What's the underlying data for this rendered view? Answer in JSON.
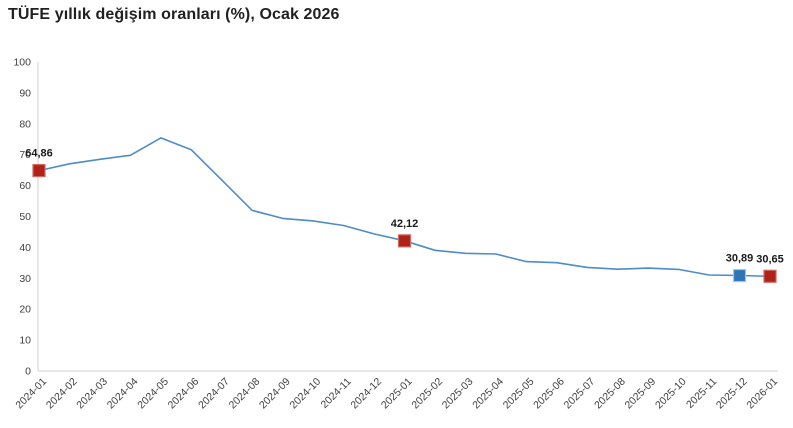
{
  "title": "TÜFE yıllık değişim oranları (%), Ocak 2026",
  "colors": {
    "line": "#4e8cc8",
    "marker_red": "#b02118",
    "marker_red_edge": "#cf6a60",
    "marker_blue": "#2e75b6",
    "marker_blue_edge": "#9ec6e8",
    "axis_line": "#d0d0d0",
    "tick_text": "#404040",
    "value_label_text": "#1a1a1a"
  },
  "chart_data": {
    "type": "line",
    "title": "TÜFE yıllık değişim oranları (%), Ocak 2026",
    "x": [
      "2024-01",
      "2024-02",
      "2024-03",
      "2024-04",
      "2024-05",
      "2024-06",
      "2024-07",
      "2024-08",
      "2024-09",
      "2024-10",
      "2024-11",
      "2024-12",
      "2025-01",
      "2025-02",
      "2025-03",
      "2025-04",
      "2025-05",
      "2025-06",
      "2025-07",
      "2025-08",
      "2025-09",
      "2025-10",
      "2025-11",
      "2025-12",
      "2026-01"
    ],
    "values": [
      64.86,
      67.07,
      68.5,
      69.8,
      75.45,
      71.6,
      61.78,
      51.97,
      49.38,
      48.58,
      47.09,
      44.38,
      42.12,
      39.05,
      38.1,
      37.86,
      35.41,
      35.05,
      33.52,
      32.95,
      33.29,
      32.87,
      31.07,
      30.89,
      30.65
    ],
    "ylim": [
      0,
      100
    ],
    "yticks": [
      0,
      10,
      20,
      30,
      40,
      50,
      60,
      70,
      80,
      90,
      100
    ],
    "grid": false,
    "legend": "none",
    "annotated_points": [
      {
        "x": "2024-01",
        "index": 0,
        "label": "64,86",
        "marker": "red"
      },
      {
        "x": "2025-01",
        "index": 12,
        "label": "42,12",
        "marker": "red"
      },
      {
        "x": "2025-12",
        "index": 23,
        "label": "30,89",
        "marker": "blue"
      },
      {
        "x": "2026-01",
        "index": 24,
        "label": "30,65",
        "marker": "red"
      }
    ]
  }
}
